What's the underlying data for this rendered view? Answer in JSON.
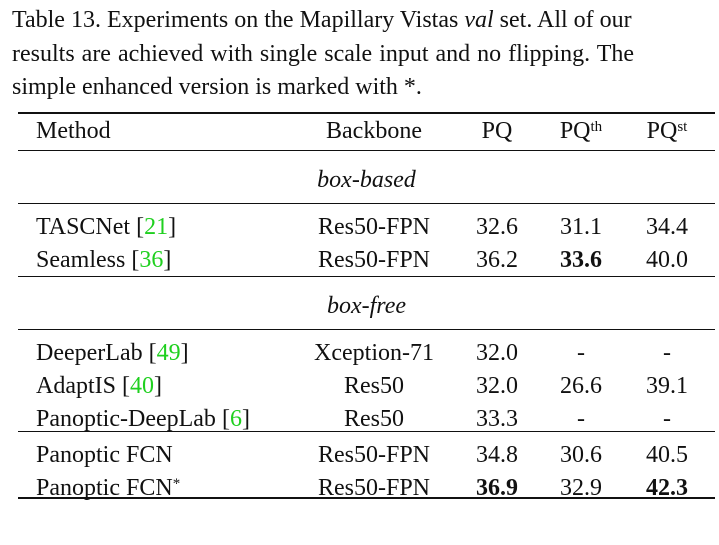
{
  "caption": {
    "lines": [
      "Table 13. Experiments on the Mapillary Vistas ",
      "val",
      " set.  All of our",
      "results are achieved with single scale input and no flipping.  The",
      "simple enhanced version is marked with *."
    ]
  },
  "header": {
    "method": "Method",
    "backbone": "Backbone",
    "pq": "PQ",
    "pqth": "PQ",
    "pqth_sup": "th",
    "pqst": "PQ",
    "pqst_sup": "st"
  },
  "sections": [
    {
      "title": "box-based",
      "rows": [
        {
          "method": "TASCNet ",
          "cite": "21",
          "backbone": "Res50-FPN",
          "pq": "32.6",
          "pqth": "31.1",
          "pqst": "34.4"
        },
        {
          "method": "Seamless ",
          "cite": "36",
          "backbone": "Res50-FPN",
          "pq": "36.2",
          "pqth": "33.6",
          "pqst": "40.0"
        }
      ]
    },
    {
      "title": "box-free",
      "rows": [
        {
          "method": "DeeperLab ",
          "cite": "49",
          "backbone": "Xception-71",
          "pq": "32.0",
          "pqth": "-",
          "pqst": "-"
        },
        {
          "method": "AdaptIS ",
          "cite": "40",
          "backbone": "Res50",
          "pq": "32.0",
          "pqth": "26.6",
          "pqst": "39.1"
        },
        {
          "method": "Panoptic-DeepLab ",
          "cite": "6",
          "backbone": "Res50",
          "pq": "33.3",
          "pqth": "-",
          "pqst": "-"
        }
      ]
    },
    {
      "title": "",
      "rows": [
        {
          "method": "Panoptic FCN",
          "backbone": "Res50-FPN",
          "pq": "34.8",
          "pqth": "30.6",
          "pqst": "40.5"
        },
        {
          "method": "Panoptic FCN",
          "sup": "*",
          "backbone": "Res50-FPN",
          "pq": "36.9",
          "pqth": "32.9",
          "pqst": "42.3"
        }
      ]
    }
  ],
  "colors": {
    "citation": "#1fd01f",
    "text": "#111111"
  }
}
